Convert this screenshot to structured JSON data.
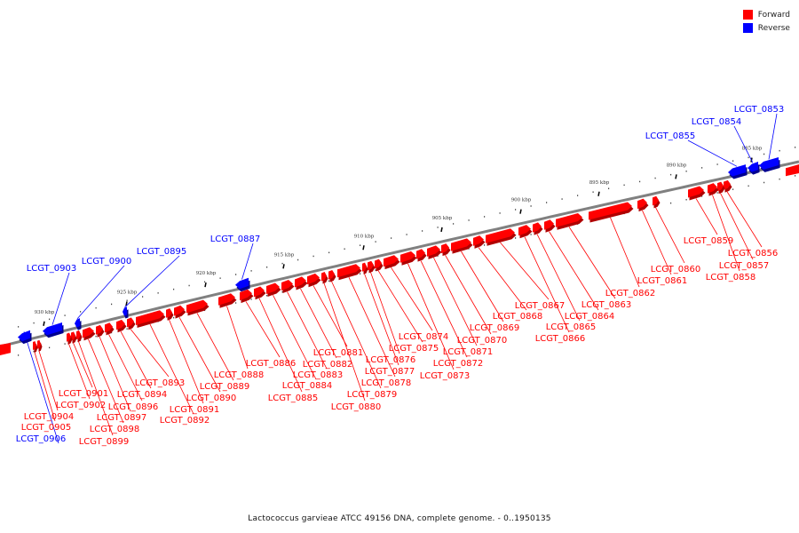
{
  "legend": [
    {
      "label": "Forward",
      "color": "#ff0000"
    },
    {
      "label": "Reverse",
      "color": "#0000ff"
    }
  ],
  "caption": "Lactococcus garvieae ATCC 49156 DNA, complete genome. - 0..1950135",
  "colors": {
    "forward": "#ff0000",
    "reverse": "#0000ff",
    "backbone": "#808080"
  },
  "ticks": [
    "885 kbp",
    "890 kbp",
    "895 kbp",
    "900 kbp",
    "905 kbp",
    "910 kbp",
    "915 kbp",
    "920 kbp",
    "925 kbp",
    "930 kbp"
  ],
  "genes": [
    {
      "name": "LCGT_0853",
      "strand": "reverse"
    },
    {
      "name": "LCGT_0854",
      "strand": "reverse"
    },
    {
      "name": "LCGT_0855",
      "strand": "reverse"
    },
    {
      "name": "LCGT_0856",
      "strand": "forward"
    },
    {
      "name": "LCGT_0857",
      "strand": "forward"
    },
    {
      "name": "LCGT_0858",
      "strand": "forward"
    },
    {
      "name": "LCGT_0859",
      "strand": "forward"
    },
    {
      "name": "LCGT_0860",
      "strand": "forward"
    },
    {
      "name": "LCGT_0861",
      "strand": "forward"
    },
    {
      "name": "LCGT_0862",
      "strand": "forward"
    },
    {
      "name": "LCGT_0863",
      "strand": "forward"
    },
    {
      "name": "LCGT_0864",
      "strand": "forward"
    },
    {
      "name": "LCGT_0865",
      "strand": "forward"
    },
    {
      "name": "LCGT_0866",
      "strand": "forward"
    },
    {
      "name": "LCGT_0867",
      "strand": "forward"
    },
    {
      "name": "LCGT_0868",
      "strand": "forward"
    },
    {
      "name": "LCGT_0869",
      "strand": "forward"
    },
    {
      "name": "LCGT_0870",
      "strand": "forward"
    },
    {
      "name": "LCGT_0871",
      "strand": "forward"
    },
    {
      "name": "LCGT_0872",
      "strand": "forward"
    },
    {
      "name": "LCGT_0873",
      "strand": "forward"
    },
    {
      "name": "LCGT_0874",
      "strand": "forward"
    },
    {
      "name": "LCGT_0875",
      "strand": "forward"
    },
    {
      "name": "LCGT_0876",
      "strand": "forward"
    },
    {
      "name": "LCGT_0877",
      "strand": "forward"
    },
    {
      "name": "LCGT_0878",
      "strand": "forward"
    },
    {
      "name": "LCGT_0879",
      "strand": "forward"
    },
    {
      "name": "LCGT_0880",
      "strand": "forward"
    },
    {
      "name": "LCGT_0881",
      "strand": "forward"
    },
    {
      "name": "LCGT_0882",
      "strand": "forward"
    },
    {
      "name": "LCGT_0883",
      "strand": "forward"
    },
    {
      "name": "LCGT_0884",
      "strand": "forward"
    },
    {
      "name": "LCGT_0885",
      "strand": "forward"
    },
    {
      "name": "LCGT_0886",
      "strand": "forward"
    },
    {
      "name": "LCGT_0887",
      "strand": "reverse"
    },
    {
      "name": "LCGT_0888",
      "strand": "forward"
    },
    {
      "name": "LCGT_0889",
      "strand": "forward"
    },
    {
      "name": "LCGT_0890",
      "strand": "forward"
    },
    {
      "name": "LCGT_0891",
      "strand": "forward"
    },
    {
      "name": "LCGT_0892",
      "strand": "forward"
    },
    {
      "name": "LCGT_0893",
      "strand": "forward"
    },
    {
      "name": "LCGT_0894",
      "strand": "forward"
    },
    {
      "name": "LCGT_0895",
      "strand": "reverse"
    },
    {
      "name": "LCGT_0896",
      "strand": "forward"
    },
    {
      "name": "LCGT_0897",
      "strand": "forward"
    },
    {
      "name": "LCGT_0898",
      "strand": "forward"
    },
    {
      "name": "LCGT_0899",
      "strand": "forward"
    },
    {
      "name": "LCGT_0900",
      "strand": "reverse"
    },
    {
      "name": "LCGT_0901",
      "strand": "forward"
    },
    {
      "name": "LCGT_0902",
      "strand": "forward"
    },
    {
      "name": "LCGT_0903",
      "strand": "reverse"
    },
    {
      "name": "LCGT_0904",
      "strand": "forward"
    },
    {
      "name": "LCGT_0905",
      "strand": "forward"
    },
    {
      "name": "LCGT_0906",
      "strand": "reverse"
    }
  ]
}
